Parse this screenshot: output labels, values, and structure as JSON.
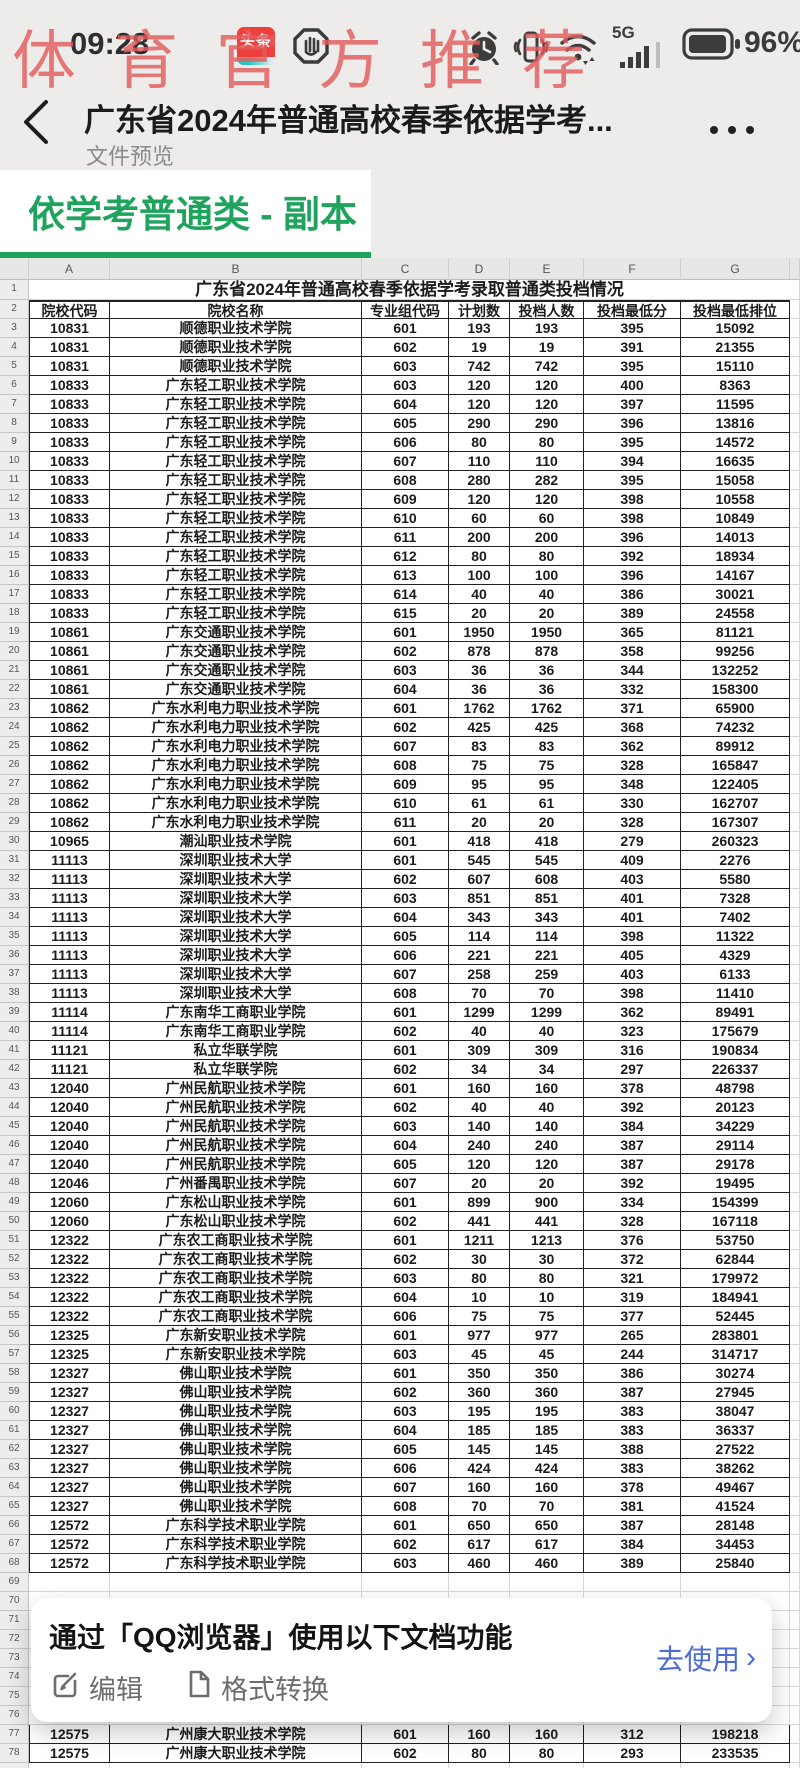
{
  "watermark": "体育官方推荐",
  "status_bar": {
    "time": "09:28",
    "network_label": "5G",
    "battery_percent": "96%"
  },
  "nav": {
    "title": "广东省2024年普通高校春季依据学考...",
    "subtitle": "文件预览"
  },
  "sheet_tab": {
    "label": "依学考普通类 - 副本"
  },
  "banner": {
    "title": "通过「QQ浏览器」使用以下文档功能",
    "action_label": "去使用",
    "action_arrow": "›",
    "features": [
      {
        "label": "编辑"
      },
      {
        "label": "格式转换"
      }
    ]
  },
  "spreadsheet": {
    "column_letters": [
      "A",
      "B",
      "C",
      "D",
      "E",
      "F",
      "G"
    ],
    "title_row": {
      "number": "1",
      "text": "广东省2024年普通高校春季依据学考录取普通类投档情况"
    },
    "header_row": {
      "number": "2",
      "cells": [
        "院校代码",
        "院校名称",
        "专业组代码",
        "计划数",
        "投档人数",
        "投档最低分",
        "投档最低排位"
      ]
    },
    "rows": [
      [
        "3",
        "10831",
        "顺德职业技术学院",
        "601",
        "193",
        "193",
        "395",
        "15092"
      ],
      [
        "4",
        "10831",
        "顺德职业技术学院",
        "602",
        "19",
        "19",
        "391",
        "21355"
      ],
      [
        "5",
        "10831",
        "顺德职业技术学院",
        "603",
        "742",
        "742",
        "395",
        "15110"
      ],
      [
        "6",
        "10833",
        "广东轻工职业技术学院",
        "603",
        "120",
        "120",
        "400",
        "8363"
      ],
      [
        "7",
        "10833",
        "广东轻工职业技术学院",
        "604",
        "120",
        "120",
        "397",
        "11595"
      ],
      [
        "8",
        "10833",
        "广东轻工职业技术学院",
        "605",
        "290",
        "290",
        "396",
        "13816"
      ],
      [
        "9",
        "10833",
        "广东轻工职业技术学院",
        "606",
        "80",
        "80",
        "395",
        "14572"
      ],
      [
        "10",
        "10833",
        "广东轻工职业技术学院",
        "607",
        "110",
        "110",
        "394",
        "16635"
      ],
      [
        "11",
        "10833",
        "广东轻工职业技术学院",
        "608",
        "280",
        "282",
        "395",
        "15058"
      ],
      [
        "12",
        "10833",
        "广东轻工职业技术学院",
        "609",
        "120",
        "120",
        "398",
        "10558"
      ],
      [
        "13",
        "10833",
        "广东轻工职业技术学院",
        "610",
        "60",
        "60",
        "398",
        "10849"
      ],
      [
        "14",
        "10833",
        "广东轻工职业技术学院",
        "611",
        "200",
        "200",
        "396",
        "14013"
      ],
      [
        "15",
        "10833",
        "广东轻工职业技术学院",
        "612",
        "80",
        "80",
        "392",
        "18934"
      ],
      [
        "16",
        "10833",
        "广东轻工职业技术学院",
        "613",
        "100",
        "100",
        "396",
        "14167"
      ],
      [
        "17",
        "10833",
        "广东轻工职业技术学院",
        "614",
        "40",
        "40",
        "386",
        "30021"
      ],
      [
        "18",
        "10833",
        "广东轻工职业技术学院",
        "615",
        "20",
        "20",
        "389",
        "24558"
      ],
      [
        "19",
        "10861",
        "广东交通职业技术学院",
        "601",
        "1950",
        "1950",
        "365",
        "81121"
      ],
      [
        "20",
        "10861",
        "广东交通职业技术学院",
        "602",
        "878",
        "878",
        "358",
        "99256"
      ],
      [
        "21",
        "10861",
        "广东交通职业技术学院",
        "603",
        "36",
        "36",
        "344",
        "132252"
      ],
      [
        "22",
        "10861",
        "广东交通职业技术学院",
        "604",
        "36",
        "36",
        "332",
        "158300"
      ],
      [
        "23",
        "10862",
        "广东水利电力职业技术学院",
        "601",
        "1762",
        "1762",
        "371",
        "65900"
      ],
      [
        "24",
        "10862",
        "广东水利电力职业技术学院",
        "602",
        "425",
        "425",
        "368",
        "74232"
      ],
      [
        "25",
        "10862",
        "广东水利电力职业技术学院",
        "607",
        "83",
        "83",
        "362",
        "89912"
      ],
      [
        "26",
        "10862",
        "广东水利电力职业技术学院",
        "608",
        "75",
        "75",
        "328",
        "165847"
      ],
      [
        "27",
        "10862",
        "广东水利电力职业技术学院",
        "609",
        "95",
        "95",
        "348",
        "122405"
      ],
      [
        "28",
        "10862",
        "广东水利电力职业技术学院",
        "610",
        "61",
        "61",
        "330",
        "162707"
      ],
      [
        "29",
        "10862",
        "广东水利电力职业技术学院",
        "611",
        "20",
        "20",
        "328",
        "167307"
      ],
      [
        "30",
        "10965",
        "潮汕职业技术学院",
        "601",
        "418",
        "418",
        "279",
        "260323"
      ],
      [
        "31",
        "11113",
        "深圳职业技术大学",
        "601",
        "545",
        "545",
        "409",
        "2276"
      ],
      [
        "32",
        "11113",
        "深圳职业技术大学",
        "602",
        "607",
        "608",
        "403",
        "5580"
      ],
      [
        "33",
        "11113",
        "深圳职业技术大学",
        "603",
        "851",
        "851",
        "401",
        "7328"
      ],
      [
        "34",
        "11113",
        "深圳职业技术大学",
        "604",
        "343",
        "343",
        "401",
        "7402"
      ],
      [
        "35",
        "11113",
        "深圳职业技术大学",
        "605",
        "114",
        "114",
        "398",
        "11322"
      ],
      [
        "36",
        "11113",
        "深圳职业技术大学",
        "606",
        "221",
        "221",
        "405",
        "4329"
      ],
      [
        "37",
        "11113",
        "深圳职业技术大学",
        "607",
        "258",
        "259",
        "403",
        "6133"
      ],
      [
        "38",
        "11113",
        "深圳职业技术大学",
        "608",
        "70",
        "70",
        "398",
        "11410"
      ],
      [
        "39",
        "11114",
        "广东南华工商职业学院",
        "601",
        "1299",
        "1299",
        "362",
        "89491"
      ],
      [
        "40",
        "11114",
        "广东南华工商职业学院",
        "602",
        "40",
        "40",
        "323",
        "175679"
      ],
      [
        "41",
        "11121",
        "私立华联学院",
        "601",
        "309",
        "309",
        "316",
        "190834"
      ],
      [
        "42",
        "11121",
        "私立华联学院",
        "602",
        "34",
        "34",
        "297",
        "226337"
      ],
      [
        "43",
        "12040",
        "广州民航职业技术学院",
        "601",
        "160",
        "160",
        "378",
        "48798"
      ],
      [
        "44",
        "12040",
        "广州民航职业技术学院",
        "602",
        "40",
        "40",
        "392",
        "20123"
      ],
      [
        "45",
        "12040",
        "广州民航职业技术学院",
        "603",
        "140",
        "140",
        "384",
        "34229"
      ],
      [
        "46",
        "12040",
        "广州民航职业技术学院",
        "604",
        "240",
        "240",
        "387",
        "29114"
      ],
      [
        "47",
        "12040",
        "广州民航职业技术学院",
        "605",
        "120",
        "120",
        "387",
        "29178"
      ],
      [
        "48",
        "12046",
        "广州番禺职业技术学院",
        "607",
        "20",
        "20",
        "392",
        "19495"
      ],
      [
        "49",
        "12060",
        "广东松山职业技术学院",
        "601",
        "899",
        "900",
        "334",
        "154399"
      ],
      [
        "50",
        "12060",
        "广东松山职业技术学院",
        "602",
        "441",
        "441",
        "328",
        "167118"
      ],
      [
        "51",
        "12322",
        "广东农工商职业技术学院",
        "601",
        "1211",
        "1213",
        "376",
        "53750"
      ],
      [
        "52",
        "12322",
        "广东农工商职业技术学院",
        "602",
        "30",
        "30",
        "372",
        "62844"
      ],
      [
        "53",
        "12322",
        "广东农工商职业技术学院",
        "603",
        "80",
        "80",
        "321",
        "179972"
      ],
      [
        "54",
        "12322",
        "广东农工商职业技术学院",
        "604",
        "10",
        "10",
        "319",
        "184941"
      ],
      [
        "55",
        "12322",
        "广东农工商职业技术学院",
        "606",
        "75",
        "75",
        "377",
        "52445"
      ],
      [
        "56",
        "12325",
        "广东新安职业技术学院",
        "601",
        "977",
        "977",
        "265",
        "283801"
      ],
      [
        "57",
        "12325",
        "广东新安职业技术学院",
        "603",
        "45",
        "45",
        "244",
        "314717"
      ],
      [
        "58",
        "12327",
        "佛山职业技术学院",
        "601",
        "350",
        "350",
        "386",
        "30274"
      ],
      [
        "59",
        "12327",
        "佛山职业技术学院",
        "602",
        "360",
        "360",
        "387",
        "27945"
      ],
      [
        "60",
        "12327",
        "佛山职业技术学院",
        "603",
        "195",
        "195",
        "383",
        "38047"
      ],
      [
        "61",
        "12327",
        "佛山职业技术学院",
        "604",
        "185",
        "185",
        "383",
        "36337"
      ],
      [
        "62",
        "12327",
        "佛山职业技术学院",
        "605",
        "145",
        "145",
        "388",
        "27522"
      ],
      [
        "63",
        "12327",
        "佛山职业技术学院",
        "606",
        "424",
        "424",
        "383",
        "38262"
      ],
      [
        "64",
        "12327",
        "佛山职业技术学院",
        "607",
        "160",
        "160",
        "378",
        "49467"
      ],
      [
        "65",
        "12327",
        "佛山职业技术学院",
        "608",
        "70",
        "70",
        "381",
        "41524"
      ],
      [
        "66",
        "12572",
        "广东科学技术职业学院",
        "601",
        "650",
        "650",
        "387",
        "28148"
      ],
      [
        "67",
        "12572",
        "广东科学技术职业学院",
        "602",
        "617",
        "617",
        "384",
        "34453"
      ],
      [
        "68",
        "12572",
        "广东科学技术职业学院",
        "603",
        "460",
        "460",
        "389",
        "25840"
      ]
    ],
    "hidden_row_numbers": [
      "69",
      "70",
      "71",
      "72",
      "73",
      "74",
      "75",
      "76"
    ],
    "bottom_rows": [
      [
        "77",
        "12575",
        "广州康大职业技术学院",
        "601",
        "160",
        "160",
        "312",
        "198218"
      ],
      [
        "78",
        "12575",
        "广州康大职业技术学院",
        "602",
        "80",
        "80",
        "293",
        "233535"
      ]
    ]
  },
  "colors": {
    "accent_green": "#1fa35d",
    "watermark_red": "#e25c5c",
    "link_blue": "#4c6cd3",
    "toutiao_red": "#ee3f3c"
  }
}
